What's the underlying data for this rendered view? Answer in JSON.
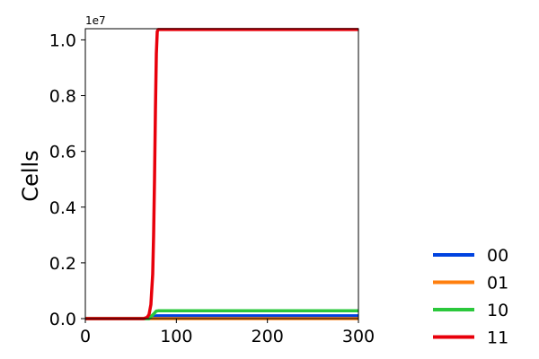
{
  "chart_data": {
    "type": "line",
    "title": "",
    "xlabel": "",
    "ylabel": "Cells",
    "y_offset_text": "1e7",
    "xlim": [
      0,
      300
    ],
    "ylim": [
      0,
      1.04
    ],
    "x_ticks": [
      0,
      100,
      200,
      300
    ],
    "x_tick_labels": [
      "0",
      "100",
      "200",
      "300"
    ],
    "y_ticks": [
      0.0,
      0.2,
      0.4,
      0.6,
      0.8,
      1.0
    ],
    "y_tick_labels": [
      "0.0",
      "0.2",
      "0.4",
      "0.6",
      "0.8",
      "1.0"
    ],
    "grid": false,
    "legend_position": "lower-right outside",
    "series": [
      {
        "name": "00",
        "color": "#0043e0",
        "x": [
          0,
          70,
          74,
          78,
          80,
          300
        ],
        "y": [
          0.0,
          0.0,
          0.005,
          0.01,
          0.01,
          0.01
        ]
      },
      {
        "name": "01",
        "color": "#ff7f0e",
        "x": [
          0,
          300
        ],
        "y": [
          0.0,
          0.0
        ]
      },
      {
        "name": "10",
        "color": "#2bc83c",
        "x": [
          0,
          70,
          73,
          76,
          78,
          80,
          300
        ],
        "y": [
          0.0,
          0.0,
          0.01,
          0.02,
          0.027,
          0.028,
          0.028
        ]
      },
      {
        "name": "11",
        "color": "#e8000b",
        "x": [
          0,
          64,
          68,
          70,
          72,
          74,
          75,
          76,
          77,
          78,
          79,
          80,
          300
        ],
        "y": [
          0.0,
          0.0,
          0.005,
          0.015,
          0.05,
          0.16,
          0.3,
          0.5,
          0.75,
          0.95,
          1.03,
          1.037,
          1.037
        ]
      }
    ]
  }
}
